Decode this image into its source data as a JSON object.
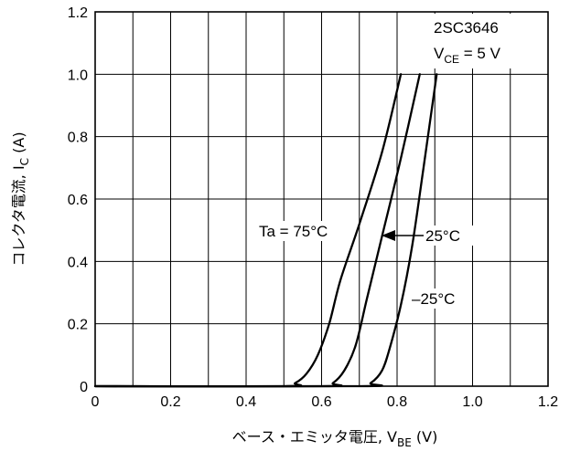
{
  "chart_data": {
    "type": "line",
    "xlabel_main": "ベース・エミッタ電圧, V",
    "xlabel_sub": "BE",
    "xlabel_unit": " (V)",
    "ylabel_main": "コレクタ電流, I",
    "ylabel_sub": "C",
    "ylabel_unit": " (A)",
    "xlim": [
      0,
      1.2
    ],
    "ylim": [
      0,
      1.2
    ],
    "x_ticks": [
      "0",
      "0.2",
      "0.4",
      "0.6",
      "0.8",
      "1.0",
      "1.2"
    ],
    "y_ticks": [
      "0",
      "0.2",
      "0.4",
      "0.6",
      "0.8",
      "1.0",
      "1.2"
    ],
    "grid": true,
    "device": "2SC3646",
    "condition_main": "V",
    "condition_sub": "CE",
    "condition_rest": " = 5 V",
    "series": [
      {
        "name": "Ta = 75°C",
        "points": [
          [
            0,
            0
          ],
          [
            0.5,
            0
          ],
          [
            0.53,
            0.01
          ],
          [
            0.56,
            0.04
          ],
          [
            0.59,
            0.1
          ],
          [
            0.62,
            0.2
          ],
          [
            0.65,
            0.34
          ],
          [
            0.7,
            0.52
          ],
          [
            0.76,
            0.75
          ],
          [
            0.81,
            1.0
          ]
        ]
      },
      {
        "name": "25°C",
        "points": [
          [
            0,
            0
          ],
          [
            0.6,
            0
          ],
          [
            0.63,
            0.01
          ],
          [
            0.66,
            0.05
          ],
          [
            0.69,
            0.13
          ],
          [
            0.72,
            0.28
          ],
          [
            0.76,
            0.48
          ],
          [
            0.81,
            0.73
          ],
          [
            0.86,
            1.0
          ]
        ]
      },
      {
        "name": "–25°C",
        "points": [
          [
            0,
            0
          ],
          [
            0.7,
            0
          ],
          [
            0.73,
            0.01
          ],
          [
            0.76,
            0.05
          ],
          [
            0.78,
            0.12
          ],
          [
            0.81,
            0.26
          ],
          [
            0.84,
            0.45
          ],
          [
            0.87,
            0.7
          ],
          [
            0.905,
            1.0
          ]
        ]
      }
    ]
  }
}
